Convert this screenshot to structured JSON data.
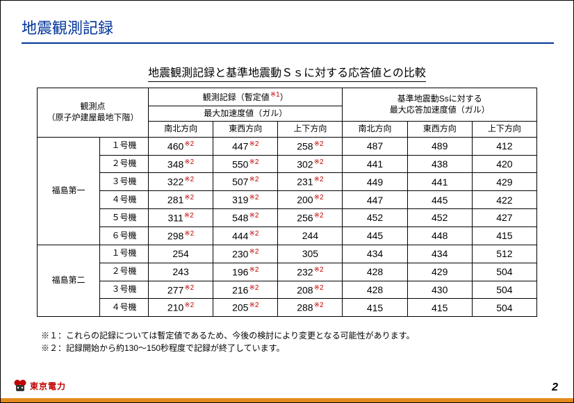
{
  "title": "地震観測記録",
  "subtitle": "地震観測記録と基準地震動Ｓｓに対する応答値との比較",
  "header": {
    "obs_point_l1": "観測点",
    "obs_point_l2": "（原子炉建屋最地下階）",
    "rec_group": "観測記録（暫定値",
    "rec_group_note": "※1",
    "rec_group_close": "）",
    "rec_sub": "最大加速度値（ガル）",
    "ss_group_l1": "基準地震動Ssに対する",
    "ss_group_l2": "最大応答加速度値（ガル）",
    "dir_ns": "南北方向",
    "dir_ew": "東西方向",
    "dir_ud": "上下方向"
  },
  "sites": [
    {
      "name": "福島第一",
      "units": [
        {
          "u": "１号機",
          "ns": "460",
          "ns_n": "※2",
          "ew": "447",
          "ew_n": "※2",
          "ud": "258",
          "ud_n": "※2",
          "sns": "487",
          "sew": "489",
          "sud": "412"
        },
        {
          "u": "２号機",
          "ns": "348",
          "ns_n": "※2",
          "ew": "550",
          "ew_n": "※2",
          "ud": "302",
          "ud_n": "※2",
          "sns": "441",
          "sew": "438",
          "sud": "420"
        },
        {
          "u": "３号機",
          "ns": "322",
          "ns_n": "※2",
          "ew": "507",
          "ew_n": "※2",
          "ud": "231",
          "ud_n": "※2",
          "sns": "449",
          "sew": "441",
          "sud": "429"
        },
        {
          "u": "４号機",
          "ns": "281",
          "ns_n": "※2",
          "ew": "319",
          "ew_n": "※2",
          "ud": "200",
          "ud_n": "※2",
          "sns": "447",
          "sew": "445",
          "sud": "422"
        },
        {
          "u": "５号機",
          "ns": "311",
          "ns_n": "※2",
          "ew": "548",
          "ew_n": "※2",
          "ud": "256",
          "ud_n": "※2",
          "sns": "452",
          "sew": "452",
          "sud": "427"
        },
        {
          "u": "６号機",
          "ns": "298",
          "ns_n": "※2",
          "ew": "444",
          "ew_n": "※2",
          "ud": "244",
          "ud_n": "",
          "sns": "445",
          "sew": "448",
          "sud": "415"
        }
      ]
    },
    {
      "name": "福島第二",
      "units": [
        {
          "u": "１号機",
          "ns": "254",
          "ns_n": "",
          "ew": "230",
          "ew_n": "※2",
          "ud": "305",
          "ud_n": "",
          "sns": "434",
          "sew": "434",
          "sud": "512"
        },
        {
          "u": "２号機",
          "ns": "243",
          "ns_n": "",
          "ew": "196",
          "ew_n": "※2",
          "ud": "232",
          "ud_n": "※2",
          "sns": "428",
          "sew": "429",
          "sud": "504"
        },
        {
          "u": "３号機",
          "ns": "277",
          "ns_n": "※2",
          "ew": "216",
          "ew_n": "※2",
          "ud": "208",
          "ud_n": "※2",
          "sns": "428",
          "sew": "430",
          "sud": "504"
        },
        {
          "u": "４号機",
          "ns": "210",
          "ns_n": "※2",
          "ew": "205",
          "ew_n": "※2",
          "ud": "288",
          "ud_n": "※2",
          "sns": "415",
          "sew": "415",
          "sud": "504"
        }
      ]
    }
  ],
  "footnotes": {
    "n1": "※１：これらの記録については暫定値であるため、今後の検討により変更となる可能性があります。",
    "n2": "※２：記録開始から約130～150秒程度で記録が終了しています。"
  },
  "page": "2",
  "logo_text": "東京電力",
  "style": {
    "title_color": "#003399",
    "note_color": "#c00000",
    "footer_bar_color": "#e28b1e",
    "border_color": "#000000",
    "bg": "#ffffff"
  }
}
